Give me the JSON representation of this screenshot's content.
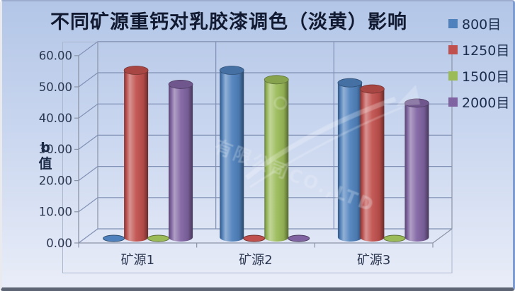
{
  "title": "不同矿源重钙对乳胶漆调色（淡黄）影响",
  "watermark": "有限公司CO.,LTD",
  "chart_data": {
    "type": "bar",
    "subtype": "3d-cylinder",
    "title": "不同矿源重钙对乳胶漆调色（淡黄）影响",
    "categories": [
      "矿源1",
      "矿源2",
      "矿源3"
    ],
    "series": [
      {
        "name": "800目",
        "color": "#4f81bd",
        "values": [
          0,
          53.5,
          49.5
        ]
      },
      {
        "name": "1250目",
        "color": "#c0504d",
        "values": [
          53.5,
          0,
          47.5
        ]
      },
      {
        "name": "1500目",
        "color": "#9bbb59",
        "values": [
          0,
          50.5,
          0
        ]
      },
      {
        "name": "2000目",
        "color": "#8064a2",
        "values": [
          49,
          0,
          43
        ]
      }
    ],
    "xlabel": "",
    "ylabel": "b值",
    "ylabel_lines": [
      "b",
      "值"
    ],
    "ylim": [
      0,
      60
    ],
    "ytick_step": 10,
    "ytick_labels": [
      "0.00",
      "10.00",
      "20.00",
      "30.00",
      "40.00",
      "50.00",
      "60.00"
    ],
    "grid": true,
    "legend_position": "right"
  }
}
